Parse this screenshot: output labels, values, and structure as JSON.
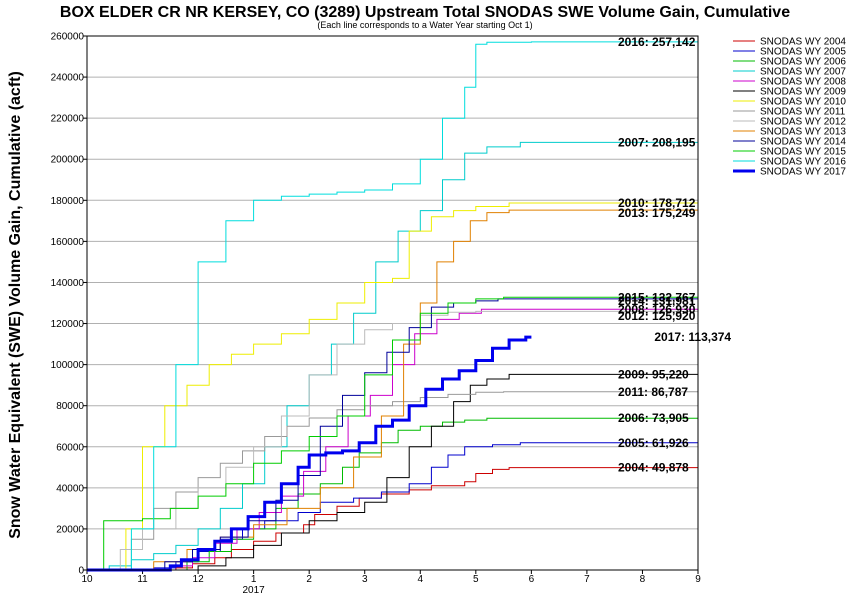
{
  "chart_data": {
    "type": "line",
    "title": "BOX ELDER CR NR KERSEY, CO (3289) Upstream Total SNODAS SWE Volume Gain, Cumulative",
    "subtitle": "(Each line corresponds to a Water Year starting Oct 1)",
    "ylabel": "Snow Water Equivalent (SWE) Volume Gain, Cumulative (acft)",
    "xlabel": "",
    "ylim": [
      0,
      260000
    ],
    "yticks": [
      0,
      20000,
      40000,
      60000,
      80000,
      100000,
      120000,
      140000,
      160000,
      180000,
      200000,
      220000,
      240000,
      260000
    ],
    "xlim": [
      10,
      21
    ],
    "xticks": [
      {
        "x": 10,
        "label": "10"
      },
      {
        "x": 11,
        "label": "11"
      },
      {
        "x": 12,
        "label": "12"
      },
      {
        "x": 13,
        "label": "1"
      },
      {
        "x": 14,
        "label": "2"
      },
      {
        "x": 15,
        "label": "3"
      },
      {
        "x": 16,
        "label": "4"
      },
      {
        "x": 17,
        "label": "5"
      },
      {
        "x": 18,
        "label": "6"
      },
      {
        "x": 19,
        "label": "7"
      },
      {
        "x": 20,
        "label": "8"
      },
      {
        "x": 21,
        "label": "9"
      }
    ],
    "year_label": {
      "x": 13,
      "label": "2017"
    },
    "grid": true,
    "legend_position": "right",
    "series": [
      {
        "name": "SNODAS WY 2004",
        "color": "#cc0000",
        "width": 1,
        "end_label": "2004: 49,878",
        "label_y": 49878,
        "x": [
          10,
          11.6,
          11.9,
          12.3,
          12.6,
          13.0,
          13.4,
          13.9,
          14.1,
          14.5,
          14.9,
          15.3,
          15.8,
          16.2,
          16.8,
          17.0,
          17.3,
          17.6,
          21
        ],
        "y": [
          0,
          1000,
          3000,
          6000,
          10000,
          14000,
          18000,
          22000,
          27000,
          31000,
          35000,
          37000,
          39000,
          41000,
          43000,
          47000,
          49000,
          49878,
          49878
        ]
      },
      {
        "name": "SNODAS WY 2005",
        "color": "#0000cc",
        "width": 1,
        "end_label": "2005: 61,926",
        "label_y": 61926,
        "x": [
          10,
          11.2,
          11.6,
          12.0,
          12.4,
          12.8,
          13.2,
          13.8,
          14.2,
          14.8,
          15.3,
          15.8,
          16.2,
          16.5,
          16.8,
          17.3,
          17.8,
          21
        ],
        "y": [
          0,
          1000,
          4000,
          9000,
          15000,
          20000,
          24000,
          28000,
          33000,
          35000,
          38000,
          42000,
          50000,
          56000,
          60000,
          61000,
          61926,
          61926
        ]
      },
      {
        "name": "SNODAS WY 2006",
        "color": "#00bb00",
        "width": 1,
        "end_label": "2006: 73,905",
        "label_y": 73905,
        "x": [
          10,
          11.8,
          12.2,
          12.6,
          13.0,
          13.4,
          13.8,
          14.2,
          14.6,
          14.9,
          15.3,
          15.6,
          16.0,
          16.4,
          16.8,
          17.2,
          21
        ],
        "y": [
          0,
          4000,
          9000,
          15000,
          20000,
          30000,
          37000,
          42000,
          50000,
          57000,
          62000,
          68000,
          70000,
          72000,
          73000,
          73905,
          73905
        ]
      },
      {
        "name": "SNODAS WY 2007",
        "color": "#00cccc",
        "width": 1,
        "end_label": "2007: 208,195",
        "label_y": 208195,
        "x": [
          10,
          10.4,
          10.8,
          11.2,
          11.6,
          12.0,
          12.4,
          12.8,
          13.2,
          13.6,
          14.0,
          14.4,
          14.8,
          15.2,
          15.6,
          16.0,
          16.4,
          16.8,
          17.2,
          17.8,
          21
        ],
        "y": [
          0,
          2000,
          5000,
          8000,
          12000,
          20000,
          30000,
          42000,
          60000,
          80000,
          95000,
          110000,
          125000,
          150000,
          165000,
          175000,
          190000,
          203000,
          206000,
          208195,
          208195
        ]
      },
      {
        "name": "SNODAS WY 2008",
        "color": "#cc00cc",
        "width": 1,
        "end_label": "2008: 126,930",
        "label_y": 126930,
        "x": [
          10,
          11.5,
          11.9,
          12.3,
          12.7,
          13.1,
          13.5,
          13.9,
          14.3,
          14.7,
          15.1,
          15.5,
          15.9,
          16.3,
          16.7,
          17.1,
          21
        ],
        "y": [
          0,
          2000,
          6000,
          13000,
          20000,
          28000,
          36000,
          48000,
          60000,
          75000,
          85000,
          100000,
          115000,
          122000,
          125000,
          126930,
          126930
        ]
      },
      {
        "name": "SNODAS WY 2009",
        "color": "#000000",
        "width": 1,
        "end_label": "2009: 95,220",
        "label_y": 95220,
        "x": [
          10,
          12.0,
          12.5,
          13.0,
          13.5,
          14.0,
          14.5,
          15.0,
          15.4,
          15.8,
          16.2,
          16.6,
          16.9,
          17.2,
          17.6,
          21
        ],
        "y": [
          0,
          2000,
          6000,
          12000,
          18000,
          24000,
          28000,
          33000,
          45000,
          60000,
          70000,
          82000,
          90000,
          93000,
          95220,
          95220
        ]
      },
      {
        "name": "SNODAS WY 2010",
        "color": "#eeee00",
        "width": 1,
        "end_label": "2010: 178,712",
        "label_y": 178712,
        "x": [
          10,
          10.7,
          11.0,
          11.4,
          11.8,
          12.2,
          12.6,
          13.0,
          13.5,
          14.0,
          14.5,
          15.0,
          15.5,
          15.8,
          16.2,
          16.6,
          17.0,
          17.6,
          21
        ],
        "y": [
          0,
          20000,
          60000,
          80000,
          90000,
          100000,
          105000,
          110000,
          115000,
          122000,
          130000,
          140000,
          142000,
          165000,
          172000,
          175000,
          177000,
          178712,
          178712
        ]
      },
      {
        "name": "SNODAS WY 2011",
        "color": "#999999",
        "width": 1,
        "end_label": "2011: 86,787",
        "label_y": 86787,
        "x": [
          10,
          10.8,
          11.2,
          11.6,
          12.0,
          12.4,
          12.8,
          13.2,
          13.6,
          14.0,
          14.5,
          15.0,
          15.5,
          16.0,
          16.5,
          17.0,
          17.5,
          21
        ],
        "y": [
          0,
          15000,
          30000,
          38000,
          45000,
          52000,
          58000,
          65000,
          70000,
          74000,
          78000,
          80000,
          82000,
          84000,
          85500,
          86500,
          86787,
          86787
        ]
      },
      {
        "name": "SNODAS WY 2012",
        "color": "#bbbbbb",
        "width": 1,
        "end_label": "2012: 125,920",
        "label_y": 123700,
        "x": [
          10,
          10.6,
          11.0,
          11.6,
          12.0,
          12.5,
          13.0,
          13.5,
          14.0,
          14.5,
          15.0,
          15.5,
          16.0,
          16.5,
          17.0,
          21
        ],
        "y": [
          0,
          10000,
          20000,
          30000,
          40000,
          50000,
          60000,
          75000,
          95000,
          110000,
          117000,
          120000,
          124000,
          125500,
          125920,
          125920
        ]
      },
      {
        "name": "SNODAS WY 2013",
        "color": "#e08000",
        "width": 1,
        "end_label": "2013: 175,249",
        "label_y": 173800,
        "x": [
          10,
          11.2,
          11.8,
          12.4,
          13.0,
          13.6,
          14.2,
          14.8,
          15.3,
          15.7,
          16.0,
          16.3,
          16.6,
          16.9,
          17.2,
          17.6,
          21
        ],
        "y": [
          0,
          4000,
          10000,
          16000,
          22000,
          30000,
          40000,
          55000,
          75000,
          110000,
          130000,
          150000,
          160000,
          170000,
          174000,
          175249,
          175249
        ]
      },
      {
        "name": "SNODAS WY 2014",
        "color": "#000099",
        "width": 1,
        "end_label": "2014: 131,981",
        "label_y": 131000,
        "x": [
          10,
          11.4,
          11.9,
          12.4,
          12.9,
          13.4,
          13.8,
          14.2,
          14.6,
          15.0,
          15.4,
          15.8,
          16.2,
          16.6,
          17.0,
          17.4,
          21
        ],
        "y": [
          0,
          4000,
          10000,
          16000,
          24000,
          34000,
          46000,
          70000,
          85000,
          96000,
          106000,
          118000,
          128000,
          130000,
          131000,
          131981,
          131981
        ]
      },
      {
        "name": "SNODAS WY 2015",
        "color": "#00cc00",
        "width": 1,
        "end_label": "2015: 132,767",
        "label_y": 132767,
        "x": [
          10,
          10.3,
          10.6,
          11.0,
          11.5,
          12.0,
          12.5,
          13.0,
          13.5,
          14.0,
          14.5,
          15.0,
          15.5,
          16.0,
          16.5,
          17.0,
          17.5,
          21
        ],
        "y": [
          0,
          24000,
          24000,
          25000,
          30000,
          36000,
          42000,
          52000,
          58000,
          65000,
          75000,
          95000,
          112000,
          125000,
          130000,
          132000,
          132767,
          132767
        ]
      },
      {
        "name": "SNODAS WY 2016",
        "color": "#00dddd",
        "width": 1,
        "end_label": "2016: 257,142",
        "label_y": 257142,
        "x": [
          10,
          10.8,
          11.2,
          11.6,
          12.0,
          12.5,
          13.0,
          13.5,
          14.0,
          14.5,
          15.0,
          15.5,
          16.0,
          16.4,
          16.8,
          17.0,
          17.2,
          18.0,
          21
        ],
        "y": [
          0,
          20000,
          60000,
          100000,
          150000,
          170000,
          180000,
          182000,
          183000,
          184000,
          185000,
          188000,
          200000,
          220000,
          235000,
          256000,
          257000,
          257142,
          257142
        ]
      },
      {
        "name": "SNODAS WY 2017",
        "color": "#0000ee",
        "width": 3,
        "end_label": "2017: 113,374",
        "label_y": 113374,
        "x": [
          10,
          11.5,
          11.7,
          12.0,
          12.3,
          12.6,
          12.9,
          13.2,
          13.5,
          13.8,
          14.0,
          14.3,
          14.6,
          14.9,
          15.2,
          15.5,
          15.8,
          16.1,
          16.4,
          16.7,
          17.0,
          17.3,
          17.6,
          17.9,
          18.0
        ],
        "y": [
          0,
          2000,
          5000,
          10000,
          14000,
          20000,
          26000,
          33000,
          42000,
          50000,
          56000,
          57000,
          58000,
          62000,
          70000,
          73000,
          80000,
          88000,
          93000,
          97000,
          102000,
          108000,
          112000,
          113374,
          113374
        ]
      }
    ]
  }
}
